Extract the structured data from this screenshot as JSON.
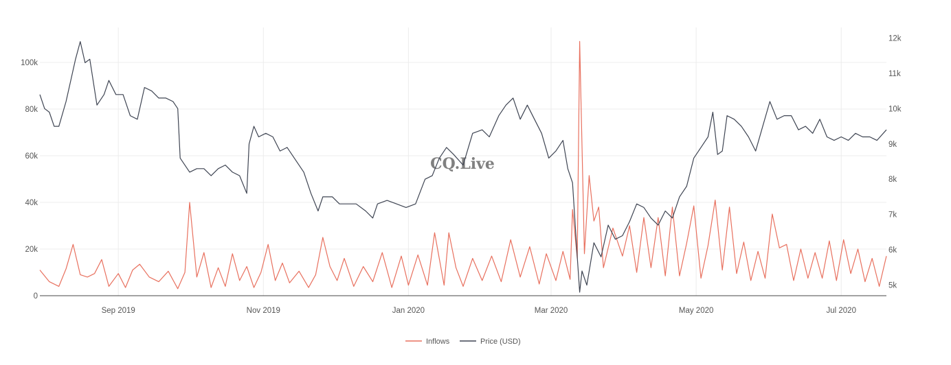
{
  "chart_data": {
    "type": "line",
    "watermark": "CQ.Live",
    "x_range": [
      "2019-07-30",
      "2020-07-20"
    ],
    "x_ticks": [
      {
        "date": "2019-09-01",
        "label": "Sep 2019"
      },
      {
        "date": "2019-11-01",
        "label": "Nov 2019"
      },
      {
        "date": "2020-01-01",
        "label": "Jan 2020"
      },
      {
        "date": "2020-03-01",
        "label": "Mar 2020"
      },
      {
        "date": "2020-05-01",
        "label": "May 2020"
      },
      {
        "date": "2020-07-01",
        "label": "Jul 2020"
      }
    ],
    "y_left": {
      "range": [
        0,
        115000
      ],
      "ticks": [
        0,
        20000,
        40000,
        60000,
        80000,
        100000
      ],
      "tick_labels": [
        "0",
        "20k",
        "40k",
        "60k",
        "80k",
        "100k"
      ]
    },
    "y_right": {
      "range": [
        4700,
        12300
      ],
      "ticks": [
        5000,
        6000,
        7000,
        8000,
        9000,
        10000,
        11000,
        12000
      ],
      "tick_labels": [
        "5k",
        "6k",
        "7k",
        "8k",
        "9k",
        "10k",
        "11k",
        "12k"
      ]
    },
    "grid": true,
    "legend_position": "bottom-center",
    "series": [
      {
        "name": "Inflows",
        "axis": "left",
        "color": "#e8705e",
        "points": [
          [
            "2019-07-30",
            11000
          ],
          [
            "2019-08-03",
            6000
          ],
          [
            "2019-08-07",
            4000
          ],
          [
            "2019-08-10",
            11500
          ],
          [
            "2019-08-13",
            22000
          ],
          [
            "2019-08-16",
            9000
          ],
          [
            "2019-08-19",
            8000
          ],
          [
            "2019-08-22",
            9500
          ],
          [
            "2019-08-25",
            15500
          ],
          [
            "2019-08-28",
            4000
          ],
          [
            "2019-09-01",
            9500
          ],
          [
            "2019-09-04",
            3500
          ],
          [
            "2019-09-07",
            11000
          ],
          [
            "2019-09-10",
            13500
          ],
          [
            "2019-09-14",
            8000
          ],
          [
            "2019-09-18",
            6000
          ],
          [
            "2019-09-22",
            10500
          ],
          [
            "2019-09-26",
            3000
          ],
          [
            "2019-09-29",
            10000
          ],
          [
            "2019-10-01",
            40000
          ],
          [
            "2019-10-04",
            8000
          ],
          [
            "2019-10-07",
            18500
          ],
          [
            "2019-10-10",
            3500
          ],
          [
            "2019-10-13",
            12000
          ],
          [
            "2019-10-16",
            4000
          ],
          [
            "2019-10-19",
            18000
          ],
          [
            "2019-10-22",
            6500
          ],
          [
            "2019-10-25",
            12500
          ],
          [
            "2019-10-28",
            3500
          ],
          [
            "2019-10-31",
            10000
          ],
          [
            "2019-11-03",
            22000
          ],
          [
            "2019-11-06",
            6500
          ],
          [
            "2019-11-09",
            14000
          ],
          [
            "2019-11-12",
            5500
          ],
          [
            "2019-11-16",
            10500
          ],
          [
            "2019-11-20",
            3500
          ],
          [
            "2019-11-23",
            9000
          ],
          [
            "2019-11-26",
            25000
          ],
          [
            "2019-11-29",
            12500
          ],
          [
            "2019-12-02",
            6500
          ],
          [
            "2019-12-05",
            16000
          ],
          [
            "2019-12-09",
            4000
          ],
          [
            "2019-12-13",
            12500
          ],
          [
            "2019-12-17",
            6000
          ],
          [
            "2019-12-21",
            18500
          ],
          [
            "2019-12-25",
            3500
          ],
          [
            "2019-12-29",
            17000
          ],
          [
            "2020-01-01",
            4500
          ],
          [
            "2020-01-05",
            17500
          ],
          [
            "2020-01-09",
            4500
          ],
          [
            "2020-01-12",
            27000
          ],
          [
            "2020-01-16",
            4500
          ],
          [
            "2020-01-18",
            27000
          ],
          [
            "2020-01-21",
            12000
          ],
          [
            "2020-01-24",
            4000
          ],
          [
            "2020-01-28",
            16000
          ],
          [
            "2020-02-01",
            6500
          ],
          [
            "2020-02-05",
            17000
          ],
          [
            "2020-02-09",
            6000
          ],
          [
            "2020-02-13",
            24000
          ],
          [
            "2020-02-17",
            8000
          ],
          [
            "2020-02-21",
            21000
          ],
          [
            "2020-02-25",
            5000
          ],
          [
            "2020-02-28",
            18000
          ],
          [
            "2020-03-03",
            6500
          ],
          [
            "2020-03-06",
            19000
          ],
          [
            "2020-03-09",
            7000
          ],
          [
            "2020-03-10",
            37000
          ],
          [
            "2020-03-12",
            16000
          ],
          [
            "2020-03-13",
            109000
          ],
          [
            "2020-03-15",
            18000
          ],
          [
            "2020-03-17",
            51500
          ],
          [
            "2020-03-19",
            32000
          ],
          [
            "2020-03-21",
            38000
          ],
          [
            "2020-03-23",
            12000
          ],
          [
            "2020-03-27",
            29000
          ],
          [
            "2020-03-31",
            17000
          ],
          [
            "2020-04-03",
            30000
          ],
          [
            "2020-04-06",
            10000
          ],
          [
            "2020-04-09",
            33500
          ],
          [
            "2020-04-12",
            12000
          ],
          [
            "2020-04-15",
            33500
          ],
          [
            "2020-04-18",
            8500
          ],
          [
            "2020-04-21",
            38000
          ],
          [
            "2020-04-24",
            8500
          ],
          [
            "2020-04-27",
            22500
          ],
          [
            "2020-04-30",
            38500
          ],
          [
            "2020-05-03",
            7500
          ],
          [
            "2020-05-06",
            21500
          ],
          [
            "2020-05-09",
            41000
          ],
          [
            "2020-05-12",
            11000
          ],
          [
            "2020-05-15",
            38000
          ],
          [
            "2020-05-18",
            9500
          ],
          [
            "2020-05-21",
            23000
          ],
          [
            "2020-05-24",
            6500
          ],
          [
            "2020-05-27",
            19000
          ],
          [
            "2020-05-30",
            7500
          ],
          [
            "2020-06-02",
            35000
          ],
          [
            "2020-06-05",
            20500
          ],
          [
            "2020-06-08",
            22000
          ],
          [
            "2020-06-11",
            6500
          ],
          [
            "2020-06-14",
            20000
          ],
          [
            "2020-06-17",
            7500
          ],
          [
            "2020-06-20",
            18500
          ],
          [
            "2020-06-23",
            7500
          ],
          [
            "2020-06-26",
            23500
          ],
          [
            "2020-06-29",
            6500
          ],
          [
            "2020-07-02",
            24000
          ],
          [
            "2020-07-05",
            9500
          ],
          [
            "2020-07-08",
            20000
          ],
          [
            "2020-07-11",
            6000
          ],
          [
            "2020-07-14",
            16000
          ],
          [
            "2020-07-17",
            4000
          ],
          [
            "2020-07-20",
            17000
          ]
        ]
      },
      {
        "name": "Price (USD)",
        "axis": "right",
        "color": "#3e4452",
        "points": [
          [
            "2019-07-30",
            10400
          ],
          [
            "2019-08-01",
            10000
          ],
          [
            "2019-08-03",
            9900
          ],
          [
            "2019-08-05",
            9500
          ],
          [
            "2019-08-07",
            9500
          ],
          [
            "2019-08-10",
            10200
          ],
          [
            "2019-08-12",
            10800
          ],
          [
            "2019-08-14",
            11400
          ],
          [
            "2019-08-16",
            11900
          ],
          [
            "2019-08-18",
            11300
          ],
          [
            "2019-08-20",
            11400
          ],
          [
            "2019-08-23",
            10100
          ],
          [
            "2019-08-26",
            10400
          ],
          [
            "2019-08-28",
            10800
          ],
          [
            "2019-08-31",
            10400
          ],
          [
            "2019-09-03",
            10400
          ],
          [
            "2019-09-06",
            9800
          ],
          [
            "2019-09-09",
            9700
          ],
          [
            "2019-09-12",
            10600
          ],
          [
            "2019-09-15",
            10500
          ],
          [
            "2019-09-18",
            10300
          ],
          [
            "2019-09-21",
            10300
          ],
          [
            "2019-09-24",
            10200
          ],
          [
            "2019-09-26",
            10000
          ],
          [
            "2019-09-27",
            8600
          ],
          [
            "2019-10-01",
            8200
          ],
          [
            "2019-10-04",
            8300
          ],
          [
            "2019-10-07",
            8300
          ],
          [
            "2019-10-10",
            8100
          ],
          [
            "2019-10-13",
            8300
          ],
          [
            "2019-10-16",
            8400
          ],
          [
            "2019-10-19",
            8200
          ],
          [
            "2019-10-22",
            8100
          ],
          [
            "2019-10-25",
            7600
          ],
          [
            "2019-10-26",
            9000
          ],
          [
            "2019-10-28",
            9500
          ],
          [
            "2019-10-30",
            9200
          ],
          [
            "2019-11-02",
            9300
          ],
          [
            "2019-11-05",
            9200
          ],
          [
            "2019-11-08",
            8800
          ],
          [
            "2019-11-11",
            8900
          ],
          [
            "2019-11-14",
            8600
          ],
          [
            "2019-11-18",
            8200
          ],
          [
            "2019-11-21",
            7600
          ],
          [
            "2019-11-24",
            7100
          ],
          [
            "2019-11-26",
            7500
          ],
          [
            "2019-11-30",
            7500
          ],
          [
            "2019-12-03",
            7300
          ],
          [
            "2019-12-06",
            7300
          ],
          [
            "2019-12-10",
            7300
          ],
          [
            "2019-12-14",
            7100
          ],
          [
            "2019-12-17",
            6900
          ],
          [
            "2019-12-19",
            7300
          ],
          [
            "2019-12-23",
            7400
          ],
          [
            "2019-12-27",
            7300
          ],
          [
            "2019-12-31",
            7200
          ],
          [
            "2020-01-04",
            7300
          ],
          [
            "2020-01-08",
            8000
          ],
          [
            "2020-01-11",
            8100
          ],
          [
            "2020-01-14",
            8600
          ],
          [
            "2020-01-17",
            8900
          ],
          [
            "2020-01-20",
            8700
          ],
          [
            "2020-01-24",
            8400
          ],
          [
            "2020-01-28",
            9300
          ],
          [
            "2020-02-01",
            9400
          ],
          [
            "2020-02-04",
            9200
          ],
          [
            "2020-02-08",
            9800
          ],
          [
            "2020-02-11",
            10100
          ],
          [
            "2020-02-14",
            10300
          ],
          [
            "2020-02-17",
            9700
          ],
          [
            "2020-02-20",
            10100
          ],
          [
            "2020-02-23",
            9700
          ],
          [
            "2020-02-26",
            9300
          ],
          [
            "2020-02-29",
            8600
          ],
          [
            "2020-03-03",
            8800
          ],
          [
            "2020-03-06",
            9100
          ],
          [
            "2020-03-08",
            8300
          ],
          [
            "2020-03-10",
            7900
          ],
          [
            "2020-03-12",
            5800
          ],
          [
            "2020-03-13",
            4800
          ],
          [
            "2020-03-14",
            5400
          ],
          [
            "2020-03-16",
            5000
          ],
          [
            "2020-03-19",
            6200
          ],
          [
            "2020-03-22",
            5800
          ],
          [
            "2020-03-25",
            6700
          ],
          [
            "2020-03-28",
            6300
          ],
          [
            "2020-03-31",
            6400
          ],
          [
            "2020-04-03",
            6800
          ],
          [
            "2020-04-06",
            7300
          ],
          [
            "2020-04-09",
            7200
          ],
          [
            "2020-04-12",
            6900
          ],
          [
            "2020-04-15",
            6700
          ],
          [
            "2020-04-18",
            7100
          ],
          [
            "2020-04-21",
            6900
          ],
          [
            "2020-04-24",
            7500
          ],
          [
            "2020-04-27",
            7800
          ],
          [
            "2020-04-30",
            8600
          ],
          [
            "2020-05-03",
            8900
          ],
          [
            "2020-05-06",
            9200
          ],
          [
            "2020-05-08",
            9900
          ],
          [
            "2020-05-10",
            8700
          ],
          [
            "2020-05-12",
            8800
          ],
          [
            "2020-05-14",
            9800
          ],
          [
            "2020-05-17",
            9700
          ],
          [
            "2020-05-20",
            9500
          ],
          [
            "2020-05-23",
            9200
          ],
          [
            "2020-05-26",
            8800
          ],
          [
            "2020-05-29",
            9500
          ],
          [
            "2020-06-01",
            10200
          ],
          [
            "2020-06-04",
            9700
          ],
          [
            "2020-06-07",
            9800
          ],
          [
            "2020-06-10",
            9800
          ],
          [
            "2020-06-13",
            9400
          ],
          [
            "2020-06-16",
            9500
          ],
          [
            "2020-06-19",
            9300
          ],
          [
            "2020-06-22",
            9700
          ],
          [
            "2020-06-25",
            9200
          ],
          [
            "2020-06-28",
            9100
          ],
          [
            "2020-07-01",
            9200
          ],
          [
            "2020-07-04",
            9100
          ],
          [
            "2020-07-07",
            9300
          ],
          [
            "2020-07-10",
            9200
          ],
          [
            "2020-07-13",
            9200
          ],
          [
            "2020-07-16",
            9100
          ],
          [
            "2020-07-20",
            9400
          ]
        ]
      }
    ]
  }
}
